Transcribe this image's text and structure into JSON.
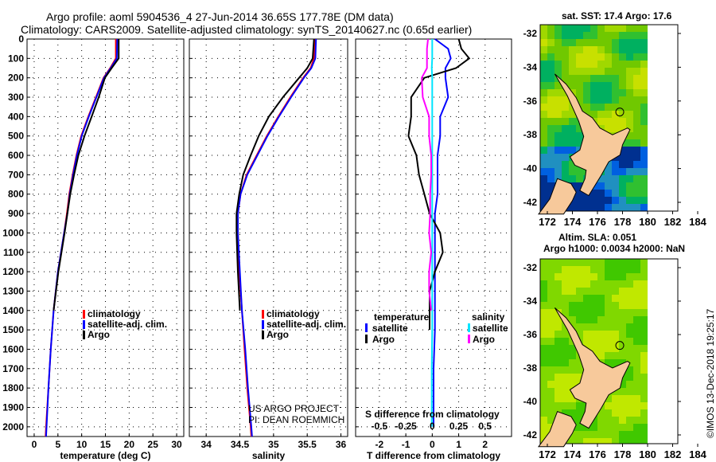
{
  "title_line1": "Argo profile: aoml 5904536_4 27-Jun-2014 36.65S 177.78E (DM data)",
  "title_line2": "Climatology: CARS2009. Satellite-adjusted climatology: synTS_20140627.nc (0.65d earlier)",
  "credit_line1": "US ARGO PROJECT",
  "credit_line2": "PI: DEAN ROEMMICH",
  "timestamp": "©IMOS 13-Dec-2018 19:25:17",
  "colors": {
    "climatology": "#ff0000",
    "satellite": "#0000ff",
    "argo": "#000000",
    "sal_satellite": "#00e5ff",
    "sal_argo": "#ff00ff",
    "land": "#f7c99b"
  },
  "chart_data": [
    {
      "type": "line",
      "name": "temperature",
      "xlabel": "temperature (deg C)",
      "xlim": [
        -1.5,
        31.5
      ],
      "xticks": [
        0,
        5,
        10,
        15,
        20,
        25,
        30
      ],
      "ylim": [
        0,
        2050
      ],
      "yticks": [
        0,
        100,
        200,
        300,
        400,
        500,
        600,
        700,
        800,
        900,
        1000,
        1100,
        1200,
        1300,
        1400,
        1500,
        1600,
        1700,
        1800,
        1900,
        2000
      ],
      "grid": true,
      "depth": [
        0,
        100,
        150,
        200,
        300,
        400,
        500,
        600,
        700,
        800,
        900,
        1000,
        1200,
        1400,
        1600,
        1800,
        2000,
        2050
      ],
      "legend": [
        "climatology",
        "satellite-adj. clim.",
        "Argo"
      ],
      "series": [
        {
          "name": "climatology",
          "values": [
            17.2,
            17.2,
            16,
            14.6,
            13,
            11.4,
            9.9,
            8.9,
            8.1,
            7.4,
            6.9,
            6.3,
            5,
            4.1,
            3.5,
            3,
            2.5,
            2.4
          ]
        },
        {
          "name": "satellite-adj. clim.",
          "values": [
            17.5,
            17.4,
            16.1,
            14.7,
            13.1,
            11.5,
            10,
            9,
            8.2,
            7.5,
            7,
            6.3,
            5,
            4.1,
            3.5,
            3,
            2.6,
            2.5
          ]
        },
        {
          "name": "Argo",
          "values": [
            17.8,
            17.8,
            16.3,
            14.9,
            13.6,
            12.1,
            10.6,
            9.3,
            8.4,
            7.6,
            7,
            6.4,
            5.1,
            4.1,
            null,
            null,
            null,
            null
          ]
        }
      ]
    },
    {
      "type": "line",
      "name": "salinity",
      "xlabel": "salinity",
      "xlim": [
        33.75,
        36.1
      ],
      "xticks": [
        34,
        34.5,
        35,
        35.5,
        36
      ],
      "ylim": [
        0,
        2050
      ],
      "grid": true,
      "depth": [
        0,
        100,
        150,
        200,
        300,
        400,
        500,
        600,
        700,
        800,
        900,
        1000,
        1200,
        1400,
        1600,
        1800,
        2000,
        2050
      ],
      "legend": [
        "climatology",
        "satellite-adj. clim.",
        "Argo"
      ],
      "series": [
        {
          "name": "climatology",
          "values": [
            35.61,
            35.6,
            35.55,
            35.44,
            35.25,
            35.07,
            34.9,
            34.75,
            34.6,
            34.51,
            34.47,
            34.47,
            34.49,
            34.53,
            34.57,
            34.61,
            34.66,
            34.67
          ]
        },
        {
          "name": "satellite-adj. clim.",
          "values": [
            35.63,
            35.62,
            35.56,
            35.45,
            35.26,
            35.08,
            34.91,
            34.76,
            34.61,
            34.51,
            34.47,
            34.47,
            34.5,
            34.53,
            34.58,
            34.62,
            34.67,
            34.68
          ]
        },
        {
          "name": "Argo",
          "values": [
            35.6,
            35.58,
            35.5,
            35.38,
            35.14,
            34.93,
            34.78,
            34.66,
            34.55,
            34.49,
            34.45,
            34.45,
            34.47,
            34.5,
            null,
            null,
            null,
            null
          ]
        }
      ]
    },
    {
      "type": "line",
      "name": "difference",
      "xlabel": "T difference from climatology",
      "x2label": "S difference from climatology",
      "xlim": [
        -2.9,
        3
      ],
      "xticks": [
        -2,
        -1,
        0,
        1,
        2
      ],
      "x2ticks": [
        -0.5,
        -0.25,
        0,
        0.25,
        0.5
      ],
      "x2ticklabels": [
        "-0.5",
        "-0.25",
        "0",
        "0.25",
        "0.5"
      ],
      "ylim": [
        0,
        2050
      ],
      "grid": true,
      "legend_temperature": {
        "title": "temperature",
        "items": [
          "satellite",
          "Argo"
        ]
      },
      "legend_salinity": {
        "title": "salinity",
        "items": [
          "satellite",
          "Argo"
        ]
      },
      "depth": [
        0,
        50,
        100,
        150,
        200,
        300,
        400,
        500,
        600,
        700,
        800,
        900,
        1000,
        1100,
        1200,
        1300,
        1400,
        1500,
        1700,
        2000
      ],
      "series": [
        {
          "name": "T satellite",
          "values": [
            0.1,
            0.6,
            0.7,
            0.5,
            0.5,
            0.6,
            0.3,
            0.3,
            0.2,
            0.2,
            0.2,
            0.1,
            0.1,
            0.1,
            0.1,
            0.1,
            0.1,
            0.1,
            0.05,
            0.05
          ]
        },
        {
          "name": "T Argo",
          "values": [
            1,
            1.1,
            1.4,
            0.9,
            -0.3,
            -0.8,
            -0.8,
            -0.9,
            -0.6,
            -0.5,
            -0.3,
            -0.1,
            0.3,
            0.4,
            0.1,
            -0.1,
            -0.1,
            -0.1,
            null,
            null
          ]
        },
        {
          "name": "S satellite",
          "values": [
            0,
            0,
            0,
            -0.005,
            0,
            0,
            0,
            0,
            0,
            0,
            0,
            0,
            0,
            0,
            0,
            0,
            0,
            0,
            -0.005,
            -0.005
          ]
        },
        {
          "name": "S Argo",
          "values": [
            -0.04,
            -0.05,
            -0.05,
            -0.05,
            -0.1,
            -0.09,
            -0.03,
            -0.03,
            -0.01,
            -0.01,
            -0.02,
            -0.02,
            -0.03,
            -0.01,
            -0.03,
            -0.03,
            -0.01,
            null,
            null,
            null
          ]
        }
      ]
    }
  ],
  "map_sst": {
    "title": "sat. SST: 17.4 Argo: 17.6",
    "lon_ticks": [
      172,
      174,
      176,
      178,
      180,
      182,
      184
    ],
    "lat_ticks": [
      -32,
      -34,
      -36,
      -38,
      -40,
      -42
    ],
    "float_lon": 177.78,
    "float_lat": -36.65
  },
  "map_sla": {
    "title1": "Altim. SLA: 0.051",
    "title2": "Argo h1000: 0.0034 h2000: NaN",
    "lon_ticks": [
      172,
      174,
      176,
      178,
      180,
      182,
      184
    ],
    "lat_ticks": [
      -32,
      -34,
      -36,
      -38,
      -40,
      -42
    ],
    "float_lon": 177.78,
    "float_lat": -36.65
  }
}
